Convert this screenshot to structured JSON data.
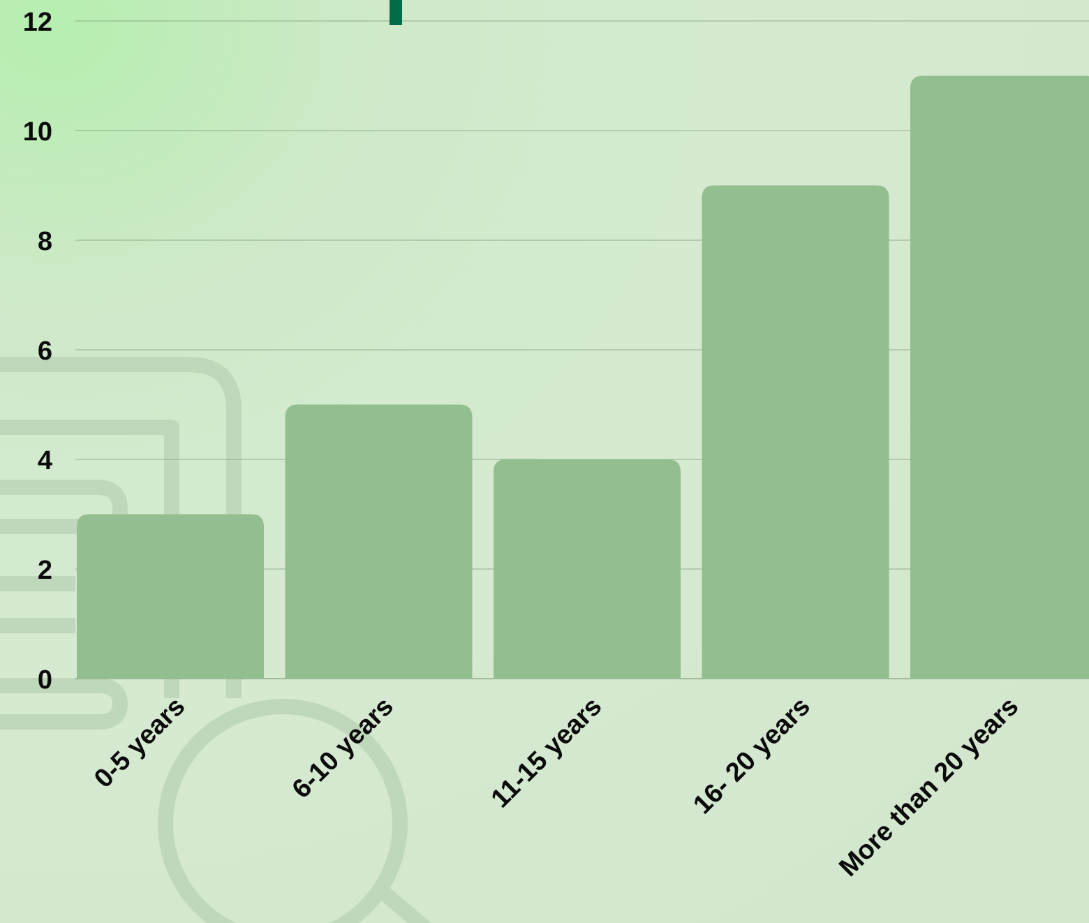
{
  "chart_data": {
    "type": "bar",
    "categories": [
      "0-5 years",
      "6-10 years",
      "11-15 years",
      "16- 20 years",
      "More than 20 years"
    ],
    "values": [
      3,
      5,
      4,
      9,
      11
    ],
    "title": "",
    "xlabel": "",
    "ylabel": "",
    "ylim": [
      0,
      12
    ],
    "yticks": [
      0,
      2,
      4,
      6,
      8,
      10,
      12
    ],
    "grid": true,
    "colors": {
      "bar": "#93be8f",
      "grid": "#8fae8b",
      "accent": "#006b4a",
      "decoration": "#bfd8bb"
    }
  }
}
